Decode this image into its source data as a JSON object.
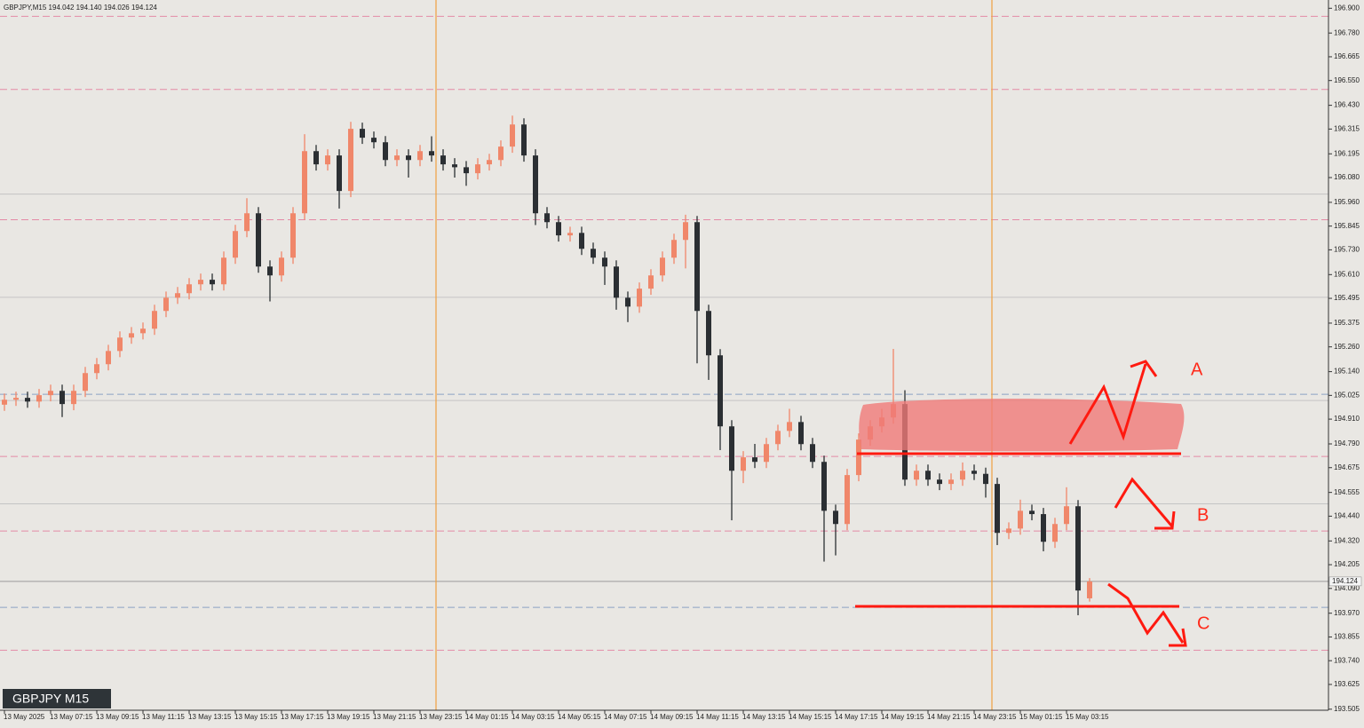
{
  "chart_data": {
    "type": "candlestick",
    "title": "GBPJPY,M15  194.042 194.140 194.026 194.124",
    "label": "GBPJPY M15",
    "categories": [
      "13 May 2025",
      null,
      null,
      null,
      "13 May 07:15",
      null,
      null,
      null,
      "13 May 09:15",
      null,
      null,
      null,
      "13 May 11:15",
      null,
      null,
      null,
      "13 May 13:15",
      null,
      null,
      null,
      "13 May 15:15",
      null,
      null,
      null,
      "13 May 17:15",
      null,
      null,
      null,
      "13 May 19:15",
      null,
      null,
      null,
      "13 May 21:15",
      null,
      null,
      null,
      "13 May 23:15",
      null,
      null,
      null,
      "14 May 01:15",
      null,
      null,
      null,
      "14 May 03:15",
      null,
      null,
      null,
      "14 May 05:15",
      null,
      null,
      null,
      "14 May 07:15",
      null,
      null,
      null,
      "14 May 09:15",
      null,
      null,
      null,
      "14 May 11:15",
      null,
      null,
      null,
      "14 May 13:15",
      null,
      null,
      null,
      "14 May 15:15",
      null,
      null,
      null,
      "14 May 17:15",
      null,
      null,
      null,
      "14 May 19:15",
      null,
      null,
      null,
      "14 May 21:15",
      null,
      null,
      null,
      "14 May 23:15",
      null,
      null,
      null,
      "15 May 01:15",
      null,
      null,
      null,
      "15 May 03:15",
      null,
      null
    ],
    "open": [
      194.98,
      195.004,
      195.013,
      194.995,
      195.026,
      195.047,
      194.983,
      195.047,
      195.133,
      195.176,
      195.24,
      195.305,
      195.326,
      195.348,
      195.434,
      195.498,
      195.52,
      195.563,
      195.585,
      195.563,
      195.692,
      195.821,
      195.907,
      195.649,
      195.606,
      195.692,
      195.907,
      196.208,
      196.144,
      196.187,
      196.015,
      196.316,
      196.273,
      196.251,
      196.165,
      196.187,
      196.165,
      196.208,
      196.187,
      196.144,
      196.13,
      196.101,
      196.144,
      196.165,
      196.23,
      196.337,
      196.187,
      195.907,
      195.864,
      195.8,
      195.812,
      195.735,
      195.692,
      195.649,
      195.498,
      195.455,
      195.542,
      195.606,
      195.692,
      195.778,
      195.864,
      195.434,
      195.219,
      194.875,
      194.66,
      194.725,
      194.703,
      194.789,
      194.853,
      194.896,
      194.789,
      194.703,
      194.466,
      194.402,
      194.639,
      194.811,
      194.875,
      194.918,
      194.983,
      194.617,
      194.66,
      194.617,
      194.596,
      194.617,
      194.66,
      194.645,
      194.596,
      194.359,
      194.38,
      194.466,
      194.45,
      194.316,
      194.402,
      194.488,
      194.042
    ],
    "high": [
      195.034,
      195.043,
      195.043,
      195.056,
      195.077,
      195.077,
      195.077,
      195.163,
      195.206,
      195.27,
      195.335,
      195.356,
      195.378,
      195.464,
      195.528,
      195.55,
      195.593,
      195.615,
      195.615,
      195.722,
      195.851,
      195.98,
      195.937,
      195.679,
      195.722,
      195.937,
      196.29,
      196.238,
      196.217,
      196.217,
      196.35,
      196.346,
      196.303,
      196.281,
      196.217,
      196.217,
      196.238,
      196.28,
      196.217,
      196.174,
      196.16,
      196.174,
      196.195,
      196.26,
      196.38,
      196.367,
      196.217,
      195.937,
      195.894,
      195.842,
      195.842,
      195.765,
      195.722,
      195.679,
      195.528,
      195.572,
      195.636,
      195.722,
      195.808,
      195.9,
      195.894,
      195.464,
      195.249,
      194.905,
      194.755,
      194.79,
      194.819,
      194.883,
      194.96,
      194.926,
      194.819,
      194.733,
      194.496,
      194.669,
      194.841,
      194.905,
      194.96,
      195.25,
      195.05,
      194.69,
      194.69,
      194.647,
      194.647,
      194.7,
      194.69,
      194.675,
      194.626,
      194.41,
      194.52,
      194.496,
      194.48,
      194.432,
      194.58,
      194.518,
      194.14
    ],
    "low": [
      194.95,
      194.974,
      194.965,
      194.965,
      194.996,
      194.92,
      194.953,
      195.017,
      195.103,
      195.146,
      195.21,
      195.275,
      195.296,
      195.318,
      195.404,
      195.468,
      195.49,
      195.533,
      195.533,
      195.533,
      195.662,
      195.791,
      195.619,
      195.48,
      195.576,
      195.662,
      195.877,
      196.114,
      196.114,
      195.93,
      195.985,
      196.243,
      196.221,
      196.135,
      196.135,
      196.08,
      196.135,
      196.157,
      196.114,
      196.08,
      196.04,
      196.071,
      196.114,
      196.135,
      196.2,
      196.157,
      195.85,
      195.834,
      195.77,
      195.77,
      195.705,
      195.662,
      195.56,
      195.44,
      195.38,
      195.425,
      195.512,
      195.576,
      195.662,
      195.64,
      195.18,
      195.1,
      194.76,
      194.42,
      194.6,
      194.673,
      194.673,
      194.759,
      194.823,
      194.759,
      194.673,
      194.22,
      194.25,
      194.372,
      194.609,
      194.781,
      194.845,
      194.888,
      194.587,
      194.587,
      194.587,
      194.566,
      194.566,
      194.587,
      194.615,
      194.53,
      194.3,
      194.329,
      194.35,
      194.42,
      194.27,
      194.286,
      194.372,
      193.96,
      194.026
    ],
    "close": [
      195.004,
      195.013,
      194.995,
      195.026,
      195.047,
      194.983,
      195.047,
      195.133,
      195.176,
      195.24,
      195.305,
      195.326,
      195.348,
      195.434,
      195.498,
      195.52,
      195.563,
      195.585,
      195.563,
      195.692,
      195.821,
      195.907,
      195.649,
      195.606,
      195.692,
      195.907,
      196.208,
      196.144,
      196.187,
      196.015,
      196.316,
      196.273,
      196.251,
      196.165,
      196.187,
      196.165,
      196.208,
      196.187,
      196.144,
      196.13,
      196.101,
      196.144,
      196.165,
      196.23,
      196.337,
      196.187,
      195.907,
      195.864,
      195.8,
      195.812,
      195.735,
      195.692,
      195.649,
      195.498,
      195.455,
      195.542,
      195.606,
      195.692,
      195.778,
      195.864,
      195.434,
      195.219,
      194.875,
      194.66,
      194.725,
      194.703,
      194.789,
      194.853,
      194.896,
      194.789,
      194.703,
      194.466,
      194.402,
      194.639,
      194.811,
      194.875,
      194.918,
      194.983,
      194.617,
      194.66,
      194.617,
      194.596,
      194.617,
      194.66,
      194.645,
      194.596,
      194.359,
      194.38,
      194.466,
      194.45,
      194.316,
      194.402,
      194.488,
      194.08,
      194.124
    ],
    "up_color": "#f0876a",
    "down_color": "#2b2f33",
    "ylim": [
      193.5,
      196.94
    ],
    "yticks": [
      {
        "value": 196.9,
        "label": "196.900"
      },
      {
        "value": 196.78,
        "label": "196.780"
      },
      {
        "value": 196.665,
        "label": "196.665"
      },
      {
        "value": 196.55,
        "label": "196.550"
      },
      {
        "value": 196.43,
        "label": "196.430"
      },
      {
        "value": 196.315,
        "label": "196.315"
      },
      {
        "value": 196.195,
        "label": "196.195"
      },
      {
        "value": 196.08,
        "label": "196.080"
      },
      {
        "value": 195.96,
        "label": "195.960"
      },
      {
        "value": 195.845,
        "label": "195.845"
      },
      {
        "value": 195.73,
        "label": "195.730"
      },
      {
        "value": 195.61,
        "label": "195.610"
      },
      {
        "value": 195.495,
        "label": "195.495"
      },
      {
        "value": 195.375,
        "label": "195.375"
      },
      {
        "value": 195.26,
        "label": "195.260"
      },
      {
        "value": 195.14,
        "label": "195.140"
      },
      {
        "value": 195.025,
        "label": "195.025"
      },
      {
        "value": 194.91,
        "label": "194.910"
      },
      {
        "value": 194.79,
        "label": "194.790"
      },
      {
        "value": 194.675,
        "label": "194.675"
      },
      {
        "value": 194.555,
        "label": "194.555"
      },
      {
        "value": 194.44,
        "label": "194.440"
      },
      {
        "value": 194.32,
        "label": "194.320"
      },
      {
        "value": 194.205,
        "label": "194.205"
      },
      {
        "value": 194.09,
        "label": "194.090"
      },
      {
        "value": 193.97,
        "label": "193.970"
      },
      {
        "value": 193.855,
        "label": "193.855"
      },
      {
        "value": 193.74,
        "label": "193.740"
      },
      {
        "value": 193.625,
        "label": "193.625"
      },
      {
        "value": 193.505,
        "label": "193.505"
      }
    ],
    "levels": [
      {
        "value": 196.861,
        "color": "#e48aa6",
        "dashed": true
      },
      {
        "value": 196.507,
        "color": "#e48aa6",
        "dashed": true
      },
      {
        "value": 195.876,
        "color": "#e48aa6",
        "dashed": true
      },
      {
        "value": 194.729,
        "color": "#e48aa6",
        "dashed": true
      },
      {
        "value": 194.368,
        "color": "#e48aa6",
        "dashed": true
      },
      {
        "value": 193.791,
        "color": "#e48aa6",
        "dashed": true
      },
      {
        "value": 195.03,
        "color": "#8aa2c4",
        "dashed": true
      },
      {
        "value": 193.998,
        "color": "#8aa2c4",
        "dashed": true
      },
      {
        "value": 196.0,
        "color": "#c4c4c4",
        "dashed": false
      },
      {
        "value": 195.5,
        "color": "#c4c4c4",
        "dashed": false
      },
      {
        "value": 195.0,
        "color": "#c4c4c4",
        "dashed": false
      },
      {
        "value": 194.5,
        "color": "#c4c4c4",
        "dashed": false
      }
    ],
    "current_price": {
      "value": 194.124,
      "label": "194.124"
    },
    "annotations": [
      "A",
      "B",
      "C"
    ]
  }
}
